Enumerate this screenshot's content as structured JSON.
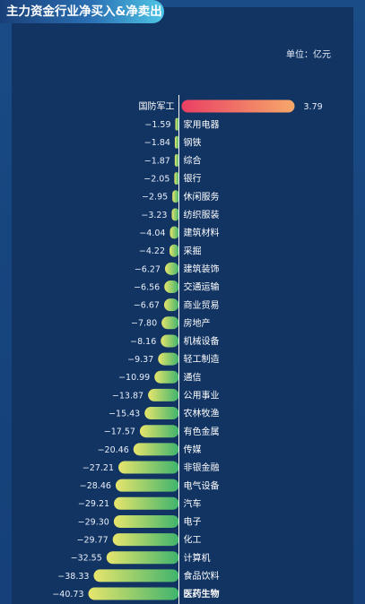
{
  "header": {
    "title": "主力资金行业净买入&净卖出"
  },
  "unit_label": "单位：亿元",
  "colors": {
    "positive_start": "#ea3f63",
    "positive_end": "#f6a86a",
    "negative_start": "#e7e56c",
    "negative_end": "#3fb36d",
    "axis": "#ffffff"
  },
  "chart_data": {
    "type": "bar",
    "orientation": "horizontal",
    "unit": "亿元",
    "categories": [
      "国防军工",
      "家用电器",
      "钢铁",
      "综合",
      "银行",
      "休闲服务",
      "纺织服装",
      "建筑材料",
      "采掘",
      "建筑装饰",
      "交通运输",
      "商业贸易",
      "房地产",
      "机械设备",
      "轻工制造",
      "通信",
      "公用事业",
      "农林牧渔",
      "有色金属",
      "传媒",
      "非银金融",
      "电气设备",
      "汽车",
      "电子",
      "化工",
      "计算机",
      "食品饮料",
      "医药生物"
    ],
    "values": [
      3.79,
      -1.59,
      -1.84,
      -1.87,
      -2.05,
      -2.95,
      -3.23,
      -4.04,
      -4.22,
      -6.27,
      -6.56,
      -6.67,
      -7.8,
      -8.16,
      -9.37,
      -10.99,
      -13.87,
      -15.43,
      -17.57,
      -20.46,
      -27.21,
      -28.46,
      -29.21,
      -29.3,
      -29.77,
      -32.55,
      -38.33,
      -40.73
    ],
    "value_labels": [
      "3.79",
      "−1.59",
      "−1.84",
      "−1.87",
      "−2.05",
      "−2.95",
      "−3.23",
      "−4.04",
      "−4.22",
      "−6.27",
      "−6.56",
      "−6.67",
      "−7.80",
      "−8.16",
      "−9.37",
      "−10.99",
      "−13.87",
      "−15.43",
      "−17.57",
      "−20.46",
      "−27.21",
      "−28.46",
      "−29.21",
      "−29.30",
      "−29.77",
      "−32.55",
      "−38.33",
      "−40.73"
    ],
    "grid": false,
    "legend": "none"
  }
}
